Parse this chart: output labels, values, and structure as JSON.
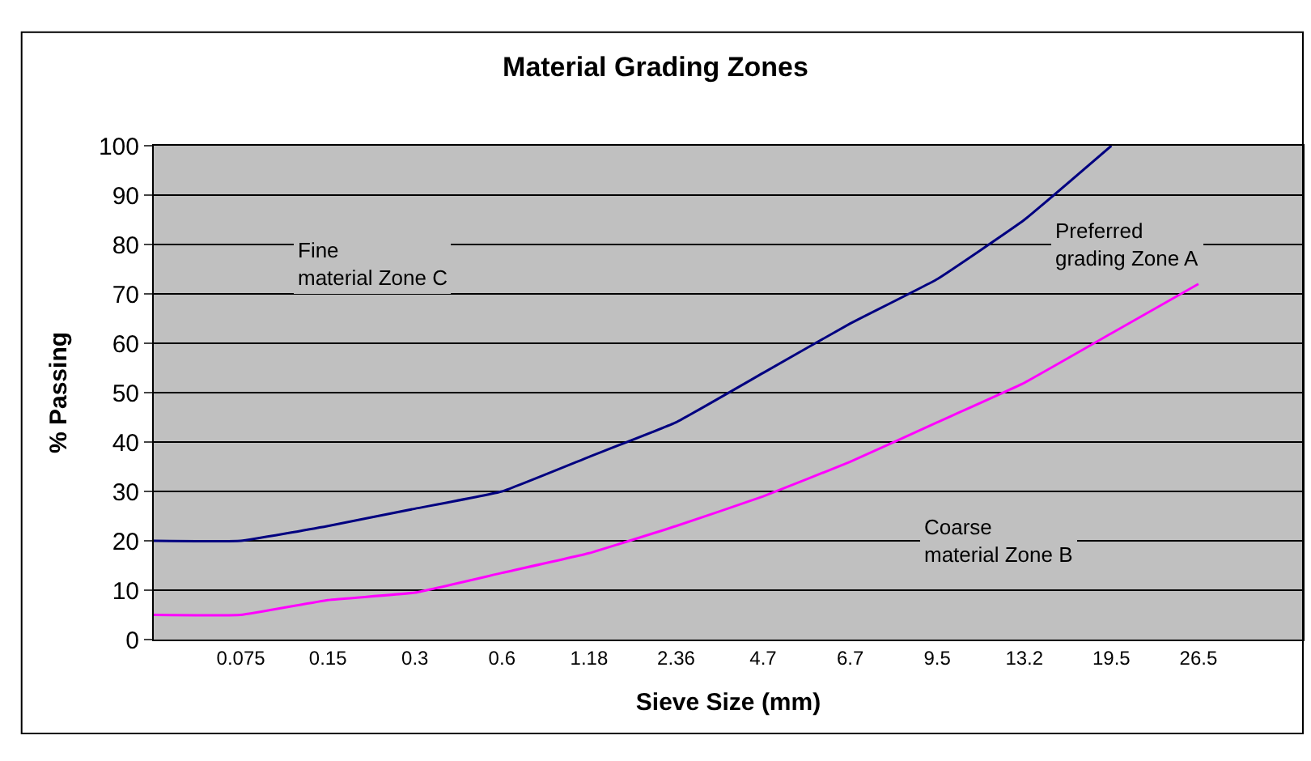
{
  "chart_data": {
    "type": "line",
    "title": "Material Grading Zones",
    "xlabel": "Sieve Size (mm)",
    "ylabel": "% Passing",
    "categories": [
      null,
      "0.075",
      "0.15",
      "0.3",
      "0.6",
      "1.18",
      "2.36",
      "4.7",
      "6.7",
      "9.5",
      "13.2",
      "19.5",
      "26.5"
    ],
    "series": [
      {
        "color": "#000080",
        "values": [
          20,
          20,
          23,
          26.5,
          30,
          37,
          44,
          54,
          64,
          73,
          85,
          100,
          null
        ]
      },
      {
        "color": "#ff00ff",
        "values": [
          5,
          5,
          8,
          9.5,
          13.5,
          17.5,
          23,
          29,
          36,
          44,
          52,
          62,
          72
        ]
      }
    ],
    "ylim": [
      0,
      100
    ],
    "yticks": [
      0,
      10,
      20,
      30,
      40,
      50,
      60,
      70,
      80,
      90,
      100
    ],
    "grid": "y",
    "legend": false,
    "marker": "none",
    "line_style": "solid",
    "annotations": [
      "Fine\nmaterial Zone C",
      "Preferred\ngrading Zone A",
      "Coarse\nmaterial Zone B"
    ]
  }
}
